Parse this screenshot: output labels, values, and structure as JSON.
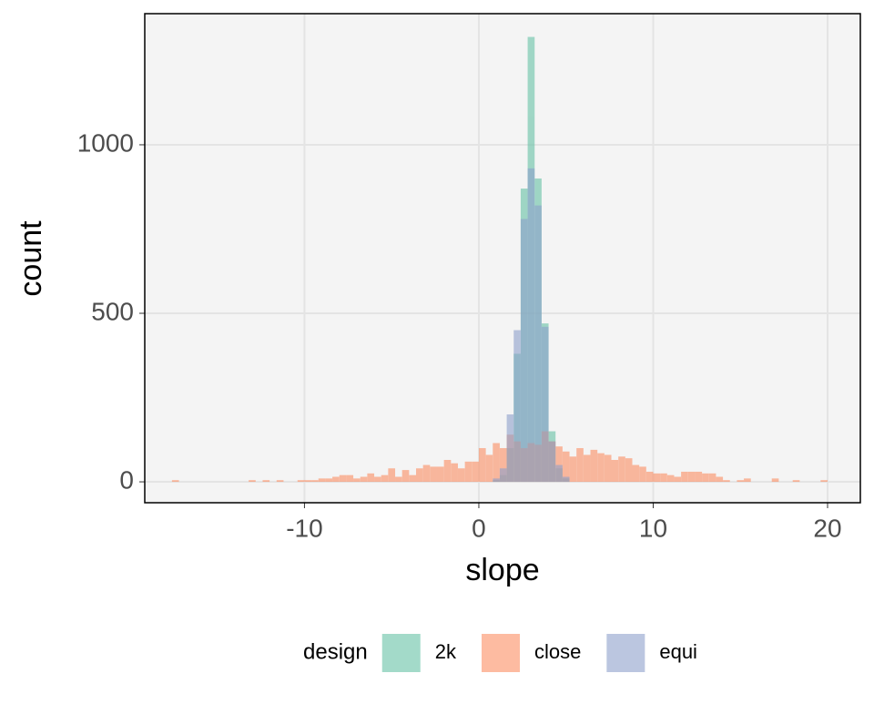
{
  "chart_data": {
    "type": "histogram",
    "x_label": "slope",
    "y_label": "count",
    "xlim": [
      -19.16,
      21.88
    ],
    "ylim": [
      -62,
      1389
    ],
    "xticks": [
      -10,
      0,
      10,
      20
    ],
    "yticks": [
      0,
      500,
      1000
    ],
    "grid": true,
    "legend_position": "bottom",
    "legend_title": "design",
    "alpha": 0.6,
    "bins": [
      -17.6,
      -17.2,
      -16.8,
      -16.4,
      -16,
      -15.6,
      -15.2,
      -14.8,
      -14.4,
      -14,
      -13.6,
      -13.2,
      -12.8,
      -12.4,
      -12,
      -11.6,
      -11.2,
      -10.8,
      -10.4,
      -10,
      -9.6,
      -9.2,
      -8.8,
      -8.4,
      -8,
      -7.6,
      -7.2,
      -6.8,
      -6.4,
      -6,
      -5.6,
      -5.2,
      -4.8,
      -4.4,
      -4,
      -3.6,
      -3.2,
      -2.8,
      -2.4,
      -2,
      -1.6,
      -1.2,
      -0.8,
      -0.4,
      0,
      0.4,
      0.8,
      1.2,
      1.6,
      2,
      2.4,
      2.8,
      3.2,
      3.6,
      4,
      4.4,
      4.8,
      5.2,
      5.6,
      6,
      6.4,
      6.8,
      7.2,
      7.6,
      8,
      8.4,
      8.8,
      9.2,
      9.6,
      10,
      10.4,
      10.8,
      11.2,
      11.6,
      12,
      12.4,
      12.8,
      13.2,
      13.6,
      14,
      14.4,
      14.8,
      15.2,
      15.6,
      16,
      16.4,
      16.8,
      17.2,
      17.6,
      18,
      18.4,
      18.8,
      19.2,
      19.6,
      20,
      20.4
    ],
    "series": [
      {
        "name": "2k",
        "color": "#66c2a5",
        "values": [
          0,
          0,
          0,
          0,
          0,
          0,
          0,
          0,
          0,
          0,
          0,
          0,
          0,
          0,
          0,
          0,
          0,
          0,
          0,
          0,
          0,
          0,
          0,
          0,
          0,
          0,
          0,
          0,
          0,
          0,
          0,
          0,
          0,
          0,
          0,
          0,
          0,
          0,
          0,
          0,
          0,
          0,
          0,
          0,
          0,
          0,
          5,
          20,
          100,
          380,
          870,
          1320,
          900,
          470,
          150,
          40,
          10,
          0,
          0,
          0,
          0,
          0,
          0,
          0,
          0,
          0,
          0,
          0,
          0,
          0,
          0,
          0,
          0,
          0,
          0,
          0,
          0,
          0,
          0,
          0,
          0,
          0,
          0,
          0,
          0,
          0,
          0,
          0,
          0,
          0,
          0,
          0,
          0,
          0,
          0
        ]
      },
      {
        "name": "close",
        "color": "#fc8d62",
        "values": [
          5,
          0,
          0,
          0,
          0,
          0,
          0,
          0,
          0,
          0,
          0,
          5,
          0,
          5,
          0,
          5,
          0,
          0,
          5,
          5,
          5,
          10,
          10,
          15,
          20,
          20,
          10,
          15,
          25,
          15,
          20,
          40,
          15,
          35,
          20,
          40,
          50,
          45,
          45,
          65,
          55,
          40,
          60,
          60,
          100,
          80,
          115,
          100,
          140,
          120,
          100,
          115,
          110,
          150,
          120,
          105,
          90,
          75,
          100,
          80,
          95,
          85,
          80,
          65,
          75,
          70,
          50,
          45,
          30,
          25,
          25,
          20,
          15,
          30,
          30,
          30,
          25,
          25,
          15,
          5,
          0,
          5,
          10,
          0,
          0,
          0,
          10,
          0,
          0,
          5,
          0,
          0,
          0,
          5,
          0
        ]
      },
      {
        "name": "equi",
        "color": "#8da0cb",
        "values": [
          0,
          0,
          0,
          0,
          0,
          0,
          0,
          0,
          0,
          0,
          0,
          0,
          0,
          0,
          0,
          0,
          0,
          0,
          0,
          0,
          0,
          0,
          0,
          0,
          0,
          0,
          0,
          0,
          0,
          0,
          0,
          0,
          0,
          0,
          0,
          0,
          0,
          0,
          0,
          0,
          0,
          0,
          0,
          0,
          0,
          0,
          10,
          40,
          200,
          450,
          780,
          930,
          820,
          460,
          120,
          50,
          15,
          0,
          0,
          0,
          0,
          0,
          0,
          0,
          0,
          0,
          0,
          0,
          0,
          0,
          0,
          0,
          0,
          0,
          0,
          0,
          0,
          0,
          0,
          0,
          0,
          0,
          0,
          0,
          0,
          0,
          0,
          0,
          0,
          0,
          0,
          0,
          0,
          0,
          0
        ]
      }
    ]
  }
}
